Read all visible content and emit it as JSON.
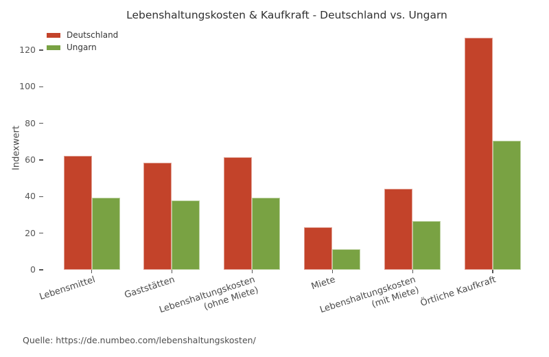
{
  "title": "Lebenshaltungskosten & Kaufkraft - Deutschland vs. Ungarn",
  "source_caption": "Quelle: https://de.numbeo.com/lebenshaltungskosten/",
  "colors": {
    "deutschland": "#c3432a",
    "ungarn": "#79a243",
    "tick_text": "#555555",
    "title_text": "#303030"
  },
  "chart_data": {
    "type": "bar",
    "title": "Lebenshaltungskosten & Kaufkraft - Deutschland vs. Ungarn",
    "xlabel": "",
    "ylabel": "Indexwert",
    "categories": [
      "Lebensmittel",
      "Gaststätten",
      "Lebenshaltungskosten\n(ohne Miete)",
      "Miete",
      "Lebenshaltungskosten\n(mit Miete)",
      "Örtliche Kaufkraft"
    ],
    "series": [
      {
        "name": "Deutschland",
        "color": "#c3432a",
        "values": [
          62.4,
          58.4,
          61.6,
          23.2,
          44.3,
          126.8
        ]
      },
      {
        "name": "Ungarn",
        "color": "#79a243",
        "values": [
          39.3,
          38.0,
          39.3,
          11.4,
          26.7,
          70.6
        ]
      }
    ],
    "yticks": [
      0,
      20,
      40,
      60,
      80,
      100,
      120
    ],
    "ylim": [
      0,
      133
    ],
    "grid": false,
    "legend_position": "upper left",
    "caption": "Quelle: https://de.numbeo.com/lebenshaltungskosten/"
  }
}
